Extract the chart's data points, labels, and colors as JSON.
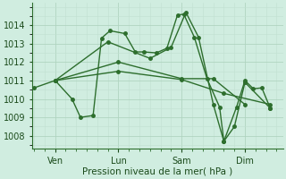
{
  "xlabel": "Pression niveau de la mer( hPa )",
  "bg_color": "#d0ede0",
  "grid_major_color": "#b0d4c0",
  "grid_minor_color": "#c0e0d0",
  "line_color": "#2d6e2d",
  "line_width": 1.0,
  "marker_size": 2.5,
  "ylim": [
    1007.3,
    1015.2
  ],
  "yticks": [
    1008,
    1009,
    1010,
    1011,
    1012,
    1013,
    1014
  ],
  "xtick_labels": [
    "Ven",
    "Lun",
    "Sam",
    "Dim"
  ],
  "xtick_positions": [
    1,
    4,
    7,
    10
  ],
  "xlim": [
    -0.1,
    11.8
  ],
  "series": [
    [
      [
        0.0,
        1010.6
      ],
      [
        1.0,
        1011.0
      ],
      [
        1.8,
        1010.0
      ],
      [
        2.2,
        1009.0
      ],
      [
        2.8,
        1009.1
      ],
      [
        3.2,
        1013.3
      ],
      [
        3.6,
        1013.7
      ],
      [
        4.3,
        1013.55
      ],
      [
        4.8,
        1012.55
      ],
      [
        5.2,
        1012.55
      ],
      [
        5.8,
        1012.5
      ],
      [
        6.3,
        1012.75
      ],
      [
        6.8,
        1014.55
      ],
      [
        7.1,
        1014.6
      ],
      [
        7.6,
        1013.35
      ],
      [
        8.2,
        1011.1
      ],
      [
        8.8,
        1009.55
      ],
      [
        9.0,
        1007.7
      ],
      [
        9.6,
        1009.55
      ],
      [
        10.0,
        1011.0
      ],
      [
        10.4,
        1010.55
      ],
      [
        10.8,
        1010.6
      ],
      [
        11.2,
        1009.5
      ]
    ],
    [
      [
        1.0,
        1011.0
      ],
      [
        4.0,
        1012.0
      ],
      [
        7.0,
        1011.1
      ],
      [
        8.5,
        1011.1
      ],
      [
        10.0,
        1009.7
      ]
    ],
    [
      [
        1.0,
        1011.0
      ],
      [
        4.0,
        1011.5
      ],
      [
        7.0,
        1011.05
      ],
      [
        9.0,
        1010.3
      ],
      [
        11.2,
        1009.7
      ]
    ],
    [
      [
        1.0,
        1011.0
      ],
      [
        3.5,
        1013.1
      ],
      [
        5.5,
        1012.2
      ],
      [
        6.5,
        1012.8
      ],
      [
        7.2,
        1014.7
      ],
      [
        7.8,
        1013.35
      ],
      [
        8.5,
        1009.7
      ],
      [
        9.0,
        1007.7
      ],
      [
        9.5,
        1008.5
      ],
      [
        10.0,
        1010.9
      ],
      [
        11.2,
        1009.5
      ]
    ]
  ]
}
